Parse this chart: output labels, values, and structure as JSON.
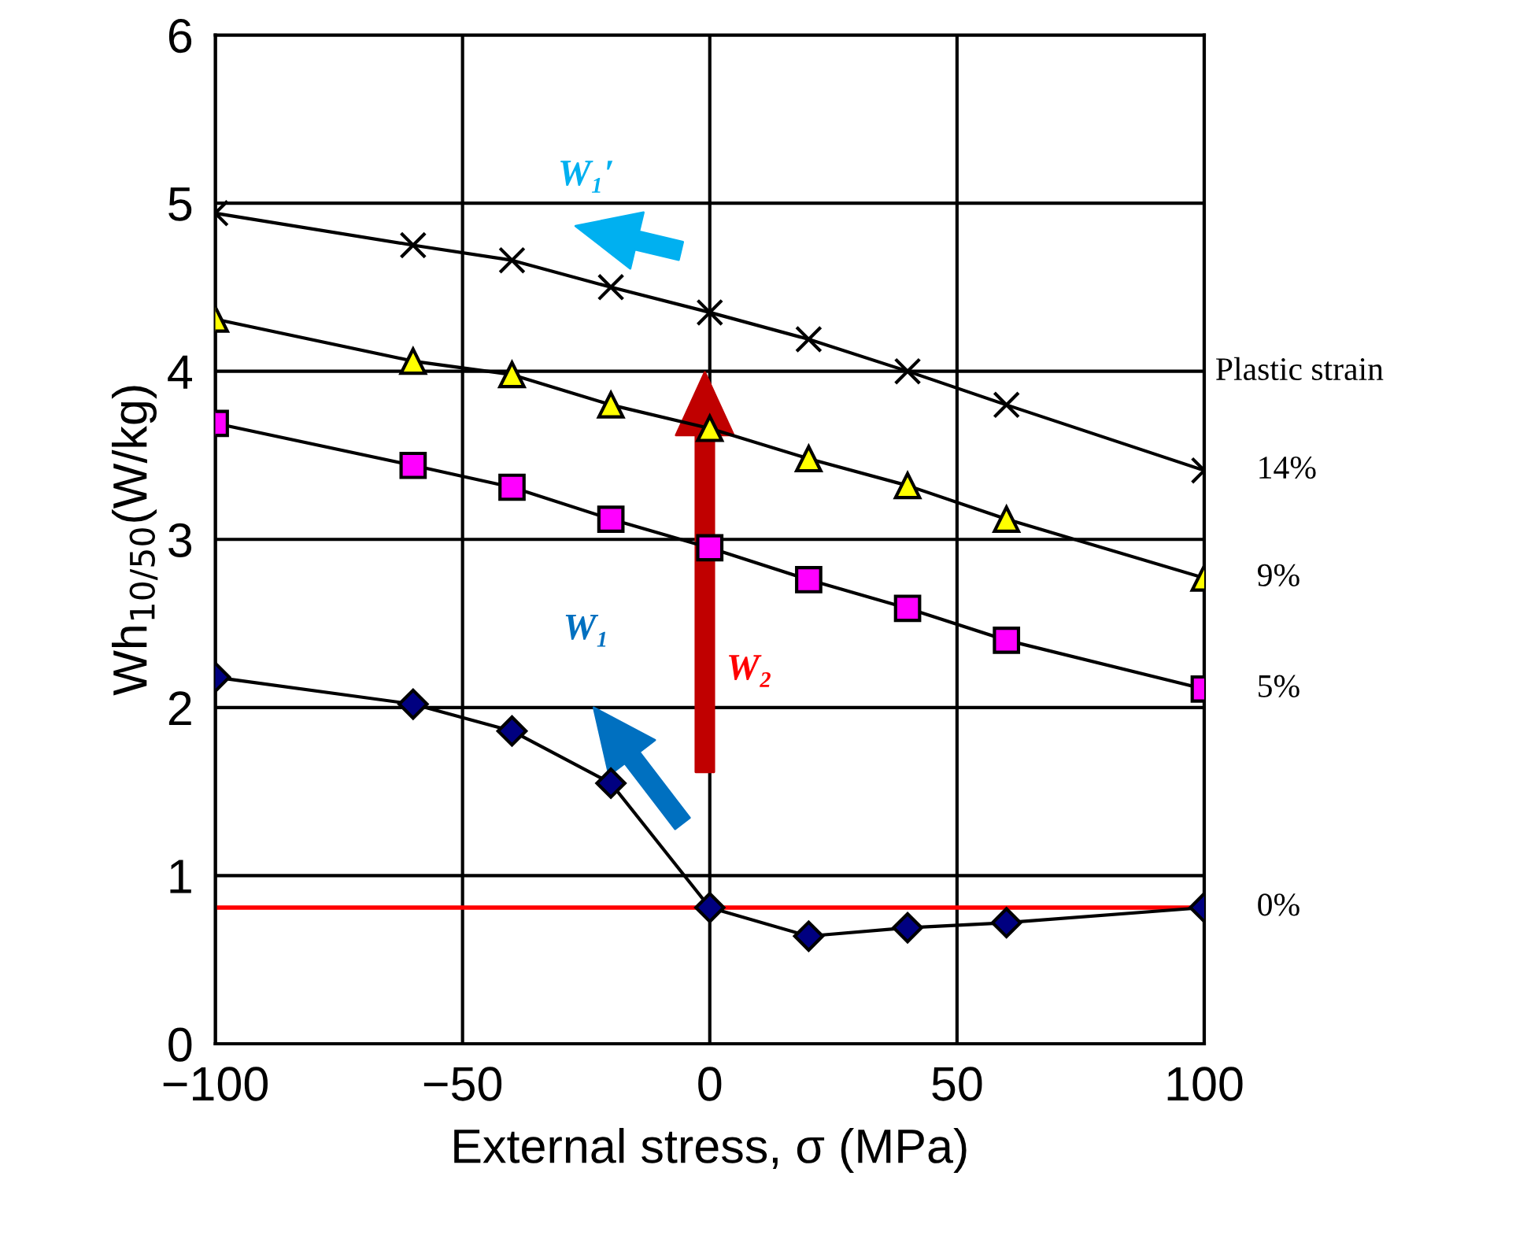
{
  "chart_data": {
    "type": "line",
    "xlabel": "External stress, σ (MPa)",
    "ylabel": "Wh$_{10/50}$(W/kg)",
    "legend_title": "Plastic strain",
    "x": [
      -100,
      -60,
      -40,
      -20,
      0,
      20,
      40,
      60,
      100
    ],
    "series": [
      {
        "name": "14%",
        "color": "#000000",
        "marker": "cross",
        "values": [
          4.94,
          4.75,
          4.66,
          4.5,
          4.35,
          4.19,
          4.0,
          3.8,
          3.41
        ]
      },
      {
        "name": "9%",
        "color": "#ffff00",
        "marker": "triangle",
        "values": [
          4.31,
          4.06,
          3.98,
          3.8,
          3.66,
          3.48,
          3.32,
          3.12,
          2.77
        ]
      },
      {
        "name": "5%",
        "color": "#ff00ff",
        "marker": "square",
        "values": [
          3.69,
          3.44,
          3.31,
          3.12,
          2.95,
          2.76,
          2.59,
          2.4,
          2.11
        ]
      },
      {
        "name": "0%",
        "color": "#000080",
        "marker": "diamond",
        "values": [
          2.18,
          2.02,
          1.86,
          1.55,
          0.81,
          0.64,
          0.69,
          0.72,
          0.81
        ]
      }
    ],
    "ref_lines": [
      {
        "axis": "y",
        "value": 0.81,
        "color": "#ff0000"
      }
    ],
    "annotations": [
      "W₁′",
      "W₁",
      "W₂"
    ],
    "xlim": [
      -100,
      100
    ],
    "ylim": [
      0,
      6
    ],
    "xticks": [
      {
        "value": -100,
        "label": "−100"
      },
      {
        "value": -50,
        "label": "−50"
      },
      0,
      50,
      100
    ],
    "yticks": [
      0,
      1,
      2,
      3,
      4,
      5,
      6
    ],
    "grid": true,
    "legend": false
  }
}
